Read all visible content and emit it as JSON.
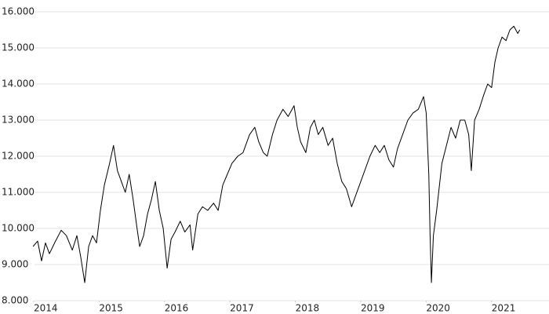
{
  "chart_data": {
    "type": "line",
    "x": [
      2013.99,
      2014.06,
      2014.12,
      2014.18,
      2014.24,
      2014.32,
      2014.42,
      2014.5,
      2014.59,
      2014.66,
      2014.72,
      2014.78,
      2014.84,
      2014.9,
      2014.96,
      2015.02,
      2015.08,
      2015.16,
      2015.22,
      2015.28,
      2015.34,
      2015.4,
      2015.46,
      2015.52,
      2015.58,
      2015.62,
      2015.68,
      2015.74,
      2015.8,
      2015.86,
      2015.92,
      2015.98,
      2016.04,
      2016.1,
      2016.16,
      2016.24,
      2016.31,
      2016.39,
      2016.43,
      2016.51,
      2016.58,
      2016.66,
      2016.75,
      2016.82,
      2016.89,
      2016.96,
      2017.03,
      2017.12,
      2017.2,
      2017.3,
      2017.38,
      2017.44,
      2017.51,
      2017.57,
      2017.65,
      2017.72,
      2017.81,
      2017.89,
      2017.98,
      2018.03,
      2018.08,
      2018.16,
      2018.23,
      2018.29,
      2018.35,
      2018.42,
      2018.5,
      2018.57,
      2018.64,
      2018.71,
      2018.78,
      2018.86,
      2018.92,
      2018.98,
      2019.06,
      2019.14,
      2019.22,
      2019.29,
      2019.36,
      2019.43,
      2019.5,
      2019.56,
      2019.64,
      2019.72,
      2019.8,
      2019.88,
      2019.96,
      2020.0,
      2020.04,
      2020.06,
      2020.08,
      2020.11,
      2020.16,
      2020.24,
      2020.31,
      2020.38,
      2020.45,
      2020.52,
      2020.59,
      2020.65,
      2020.69,
      2020.74,
      2020.81,
      2020.88,
      2020.94,
      2021.0,
      2021.05,
      2021.1,
      2021.16,
      2021.22,
      2021.28,
      2021.34,
      2021.4,
      2021.43
    ],
    "series": [
      {
        "color": "#000000",
        "values": [
          9500,
          9650,
          9100,
          9600,
          9300,
          9600,
          9950,
          9800,
          9400,
          9800,
          9200,
          8500,
          9500,
          9800,
          9600,
          10500,
          11200,
          11800,
          12300,
          11600,
          11300,
          11000,
          11500,
          10800,
          10000,
          9500,
          9800,
          10400,
          10800,
          11300,
          10500,
          10000,
          8900,
          9700,
          9900,
          10200,
          9900,
          10100,
          9400,
          10400,
          10600,
          10500,
          10700,
          10500,
          11200,
          11500,
          11800,
          12000,
          12100,
          12600,
          12800,
          12400,
          12100,
          12000,
          12600,
          13000,
          13300,
          13100,
          13400,
          12800,
          12400,
          12100,
          12800,
          13000,
          12600,
          12800,
          12300,
          12500,
          11800,
          11300,
          11100,
          10600,
          10900,
          11200,
          11600,
          12000,
          12300,
          12100,
          12300,
          11900,
          11700,
          12200,
          12600,
          13000,
          13200,
          13300,
          13650,
          13200,
          11500,
          9800,
          8500,
          9800,
          10500,
          11800,
          12300,
          12800,
          12500,
          13000,
          13000,
          12600,
          11600,
          13000,
          13300,
          13700,
          14000,
          13900,
          14600,
          15000,
          15300,
          15200,
          15500,
          15600,
          15400,
          15500
        ]
      }
    ],
    "xlim": [
      2013.95,
      2021.85
    ],
    "xticks": [
      2014,
      2015,
      2016,
      2017,
      2018,
      2019,
      2020,
      2021
    ],
    "ylim": [
      8000,
      16000
    ],
    "yticks": [
      {
        "value": 8000,
        "label": "8.000"
      },
      {
        "value": 9000,
        "label": "9.000"
      },
      {
        "value": 10000,
        "label": "10.000"
      },
      {
        "value": 11000,
        "label": "11.000"
      },
      {
        "value": 12000,
        "label": "12.000"
      },
      {
        "value": 13000,
        "label": "13.000"
      },
      {
        "value": 14000,
        "label": "14.000"
      },
      {
        "value": 15000,
        "label": "15.000"
      },
      {
        "value": 16000,
        "label": "16.000"
      }
    ],
    "grid": true
  }
}
